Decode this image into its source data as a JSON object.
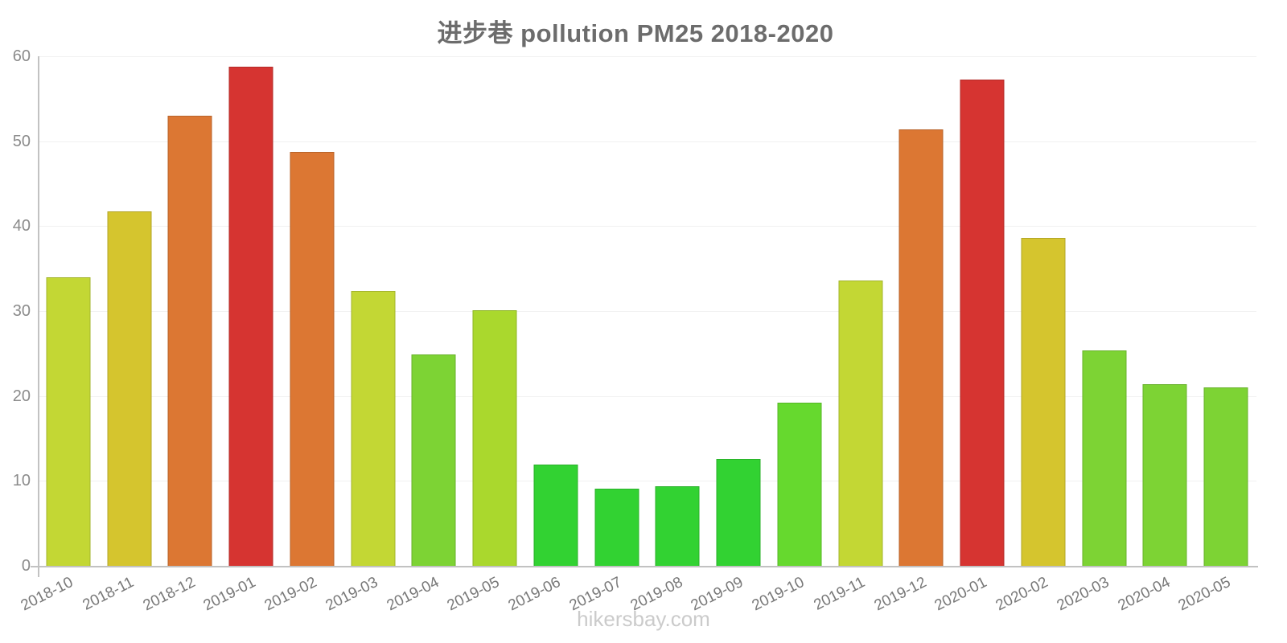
{
  "header": {
    "title": "进步巷 pollution PM25 2018-2020"
  },
  "footer": {
    "watermark": "hikersbay.com"
  },
  "chart_data": {
    "type": "bar",
    "title": "进步巷 pollution PM25 2018-2020",
    "categories": [
      "2018-10",
      "2018-11",
      "2018-12",
      "2019-01",
      "2019-02",
      "2019-03",
      "2019-04",
      "2019-05",
      "2019-06",
      "2019-07",
      "2019-08",
      "2019-09",
      "2019-10",
      "2019-11",
      "2019-12",
      "2020-01",
      "2020-02",
      "2020-03",
      "2020-04",
      "2020-05"
    ],
    "values": [
      34.0,
      41.7,
      53.0,
      58.8,
      48.7,
      32.4,
      24.9,
      30.1,
      11.9,
      9.1,
      9.4,
      12.6,
      19.2,
      33.6,
      51.4,
      57.3,
      38.6,
      25.4,
      21.4,
      21.0
    ],
    "bar_colors": [
      "#c3d734",
      "#d5c52e",
      "#dc7733",
      "#d63431",
      "#dc7733",
      "#c3d734",
      "#7dd334",
      "#aad82d",
      "#32d232",
      "#32d232",
      "#32d232",
      "#32d232",
      "#66d92e",
      "#c3d734",
      "#dc7733",
      "#d63431",
      "#d5c52e",
      "#7dd334",
      "#7dd334",
      "#7dd334"
    ],
    "xlabel": "",
    "ylabel": "",
    "ylim": [
      0,
      60
    ],
    "yticks": [
      0,
      10,
      20,
      30,
      40,
      50,
      60
    ],
    "grid": "horizontal",
    "legend": "none"
  },
  "colors": {
    "title": "#6c6c6c",
    "axis": "#c2c2c2",
    "grid": "#f1f1f1",
    "y_label": "#8b8b8b",
    "x_label": "#787878",
    "watermark": "#cbcbcb"
  }
}
